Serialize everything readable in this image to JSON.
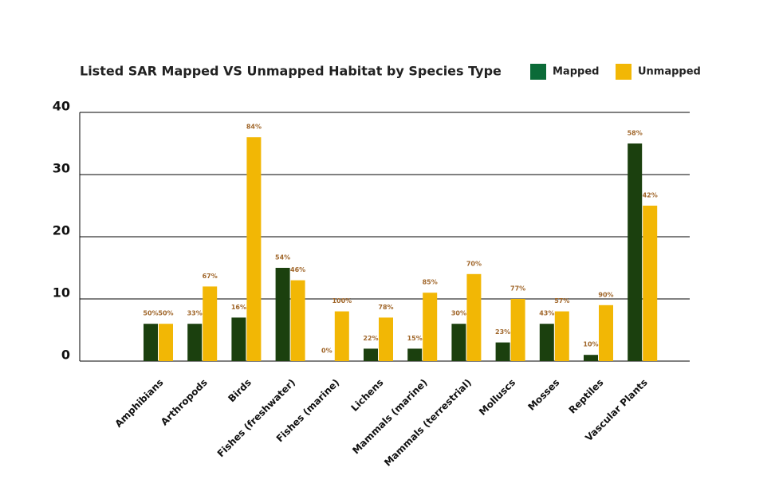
{
  "chart_data": {
    "type": "bar",
    "title": "Listed SAR Mapped VS Unmapped Habitat by Species Type",
    "categories": [
      "Amphibians",
      "Arthropods",
      "Birds",
      "Fishes (freshwater)",
      "Fishes (marine)",
      "Lichens",
      "Mammals (marine)",
      "Mammals (terrestrial)",
      "Molluscs",
      "Mosses",
      "Reptiles",
      "Vascular Plants"
    ],
    "series": [
      {
        "name": "Mapped",
        "color": "#1b400e",
        "legend_color": "#0b6b38",
        "values": [
          6,
          6,
          7,
          15,
          0,
          2,
          2,
          6,
          3,
          6,
          1,
          35
        ],
        "percent_labels": [
          "50%",
          "33%",
          "16%",
          "54%",
          "0%",
          "22%",
          "15%",
          "30%",
          "23%",
          "43%",
          "10%",
          "58%"
        ]
      },
      {
        "name": "Unmapped",
        "color": "#f2b705",
        "legend_color": "#f2b705",
        "values": [
          6,
          12,
          36,
          13,
          8,
          7,
          11,
          14,
          10,
          8,
          9,
          25
        ],
        "percent_labels": [
          "50%",
          "67%",
          "84%",
          "46%",
          "100%",
          "78%",
          "85%",
          "70%",
          "77%",
          "57%",
          "90%",
          "42%"
        ]
      }
    ],
    "ylim": [
      0,
      40
    ],
    "yticks": [
      0,
      10,
      20,
      30,
      40
    ],
    "grid": true
  }
}
